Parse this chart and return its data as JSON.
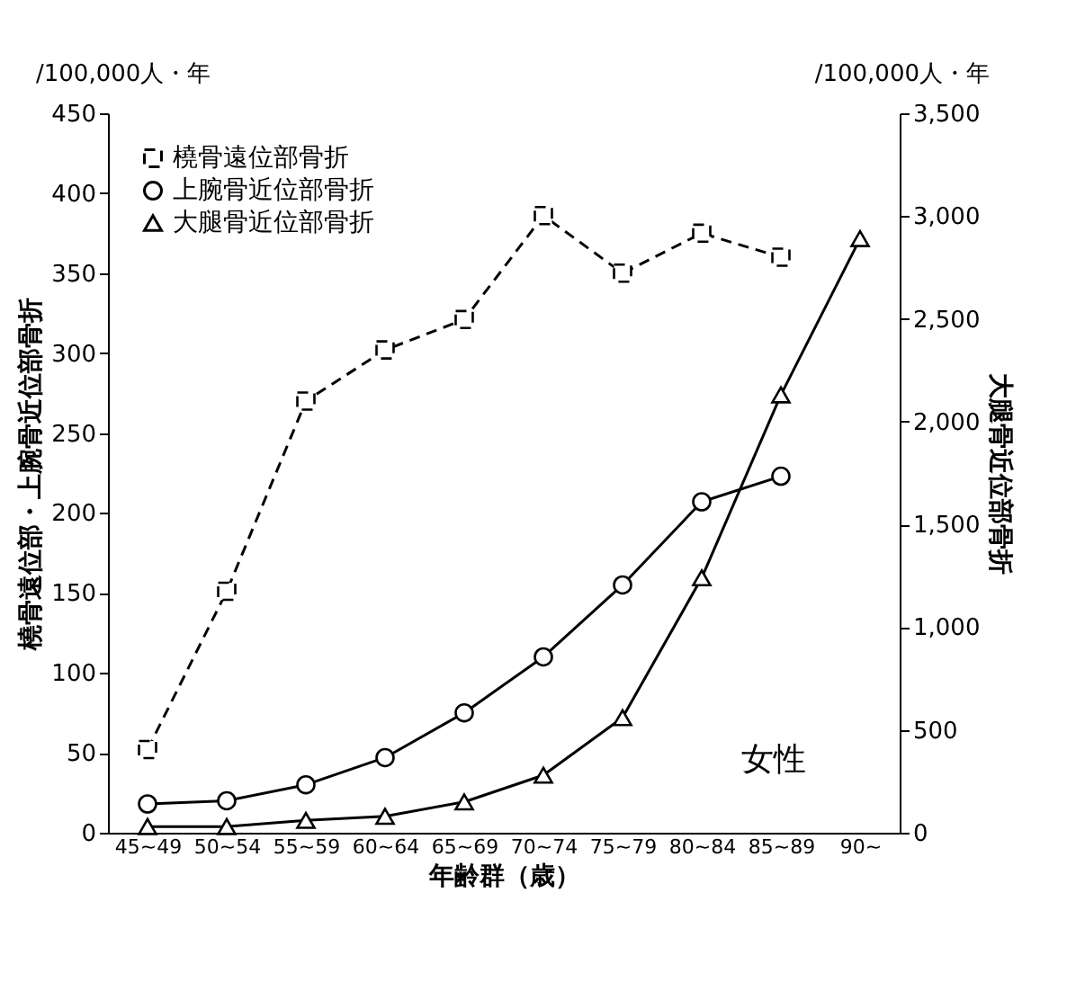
{
  "chart_data": {
    "type": "line",
    "xlabel": "年齢群（歳）",
    "ylabel": "橈骨遠位部・上腕骨近位部骨折",
    "y2label": "大腿骨近位部骨折",
    "categories": [
      "45~49",
      "50~54",
      "55~59",
      "60~64",
      "65~69",
      "70~74",
      "75~79",
      "80~84",
      "85~89",
      "90~"
    ],
    "series": [
      {
        "name": "橈骨遠位部骨折",
        "color": "#000000",
        "marker": "square",
        "line_style": "dashed",
        "values": [
          52,
          151,
          270,
          302,
          321,
          386,
          350,
          375,
          360,
          null
        ]
      },
      {
        "name": "上腕骨近位部骨折",
        "color": "#000000",
        "marker": "circle",
        "line_style": "solid",
        "values": [
          18,
          20,
          30,
          47,
          75,
          110,
          155,
          207,
          223,
          null
        ]
      },
      {
        "name": "大腿骨近位部骨折",
        "color": "#000000",
        "marker": "triangle",
        "line_style": "solid",
        "axis": "y2",
        "values": [
          30,
          30,
          60,
          80,
          150,
          280,
          560,
          1240,
          2130,
          2890
        ]
      }
    ],
    "ylim": [
      0,
      450
    ],
    "yticks": [
      0,
      50,
      100,
      150,
      200,
      250,
      300,
      350,
      400,
      450
    ],
    "y2lim": [
      0,
      3500
    ],
    "y2ticks": [
      0,
      {
        "value": 500,
        "label": "500"
      },
      {
        "value": 1000,
        "label": "1,000"
      },
      {
        "value": 1500,
        "label": "1,500"
      },
      {
        "value": 2000,
        "label": "2,000"
      },
      {
        "value": 2500,
        "label": "2,500"
      },
      {
        "value": 3000,
        "label": "3,000"
      },
      {
        "value": 3500,
        "label": "3,500"
      }
    ],
    "grid": false,
    "legend": "top left",
    "annotations": [
      "/100,000人・年",
      "/100,000人・年",
      "女性"
    ]
  }
}
